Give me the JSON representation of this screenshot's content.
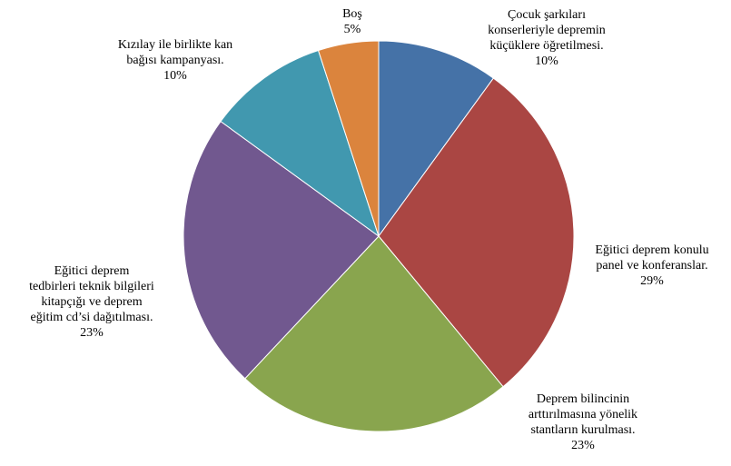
{
  "chart_data": {
    "type": "pie",
    "slices": [
      {
        "label_lines": [
          "Çocuk şarkıları",
          "konserleriyle depremin",
          "küçüklere öğretilmesi."
        ],
        "value": 10,
        "value_label": "10%",
        "color": "#4572A7"
      },
      {
        "label_lines": [
          "Eğitici deprem konulu",
          "panel ve konferanslar."
        ],
        "value": 29,
        "value_label": "29%",
        "color": "#AA4643"
      },
      {
        "label_lines": [
          "Deprem bilincinin",
          "arttırılmasına yönelik",
          "stantların kurulması."
        ],
        "value": 23,
        "value_label": "23%",
        "color": "#89A54E"
      },
      {
        "label_lines": [
          "Eğitici deprem",
          "tedbirleri teknik bilgileri",
          "kitapçığı ve deprem",
          "eğitim cd’si dağıtılması."
        ],
        "value": 23,
        "value_label": "23%",
        "color": "#71588F"
      },
      {
        "label_lines": [
          "Kızılay ile birlikte kan",
          "bağısı kampanyası."
        ],
        "value": 10,
        "value_label": "10%",
        "color": "#4198AF"
      },
      {
        "label_lines": [
          "Boş"
        ],
        "value": 5,
        "value_label": "5%",
        "color": "#DB843D"
      }
    ],
    "start": "12 o'clock",
    "direction": "clockwise",
    "legend": "none"
  }
}
